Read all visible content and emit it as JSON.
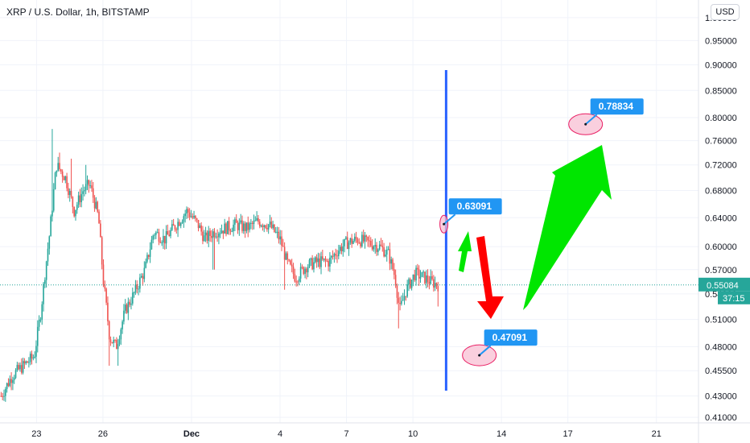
{
  "header": {
    "title": "XRP / U.S. Dollar, 1h, BITSTAMP",
    "currency_button": "USD"
  },
  "colors": {
    "up": "#26a69a",
    "down": "#ef5350",
    "vline": "#2962ff",
    "price_tag": "#26a69a",
    "callout": "#2196f3",
    "arrow_green": "#00e600",
    "arrow_red": "#ff0000"
  },
  "chart_data": {
    "type": "candlestick",
    "title": "XRP / U.S. Dollar, 1h, BITSTAMP",
    "y_scale": "log",
    "ylim": [
      0.405,
      1.04
    ],
    "y_ticks": [
      "1.00000",
      "0.95000",
      "0.90000",
      "0.85000",
      "0.80000",
      "0.76000",
      "0.72000",
      "0.68000",
      "0.64000",
      "0.60000",
      "0.57000",
      "0.54000",
      "0.51000",
      "0.48000",
      "0.45500",
      "0.43000",
      "0.41000"
    ],
    "x_ticks": [
      {
        "label": "23",
        "day": 23
      },
      {
        "label": "26",
        "day": 26
      },
      {
        "label": "Dec",
        "day": 30
      },
      {
        "label": "4",
        "day": 34
      },
      {
        "label": "7",
        "day": 37
      },
      {
        "label": "10",
        "day": 40
      },
      {
        "label": "14",
        "day": 44
      },
      {
        "label": "17",
        "day": 47
      },
      {
        "label": "21",
        "day": 51
      }
    ],
    "xlim_days": [
      21.35,
      52.9
    ],
    "price_path": [
      [
        21.4,
        0.43
      ],
      [
        21.9,
        0.45
      ],
      [
        22.4,
        0.46
      ],
      [
        22.9,
        0.47
      ],
      [
        23.2,
        0.52
      ],
      [
        23.6,
        0.62
      ],
      [
        23.9,
        0.72
      ],
      [
        24.3,
        0.7
      ],
      [
        24.7,
        0.65
      ],
      [
        25.1,
        0.68
      ],
      [
        25.4,
        0.69
      ],
      [
        25.8,
        0.64
      ],
      [
        26.0,
        0.56
      ],
      [
        26.3,
        0.49
      ],
      [
        26.6,
        0.48
      ],
      [
        27.0,
        0.52
      ],
      [
        27.4,
        0.54
      ],
      [
        27.9,
        0.57
      ],
      [
        28.3,
        0.62
      ],
      [
        28.8,
        0.61
      ],
      [
        29.3,
        0.63
      ],
      [
        29.8,
        0.65
      ],
      [
        30.3,
        0.63
      ],
      [
        30.6,
        0.61
      ],
      [
        31.0,
        0.62
      ],
      [
        31.5,
        0.625
      ],
      [
        32.0,
        0.63
      ],
      [
        32.5,
        0.625
      ],
      [
        33.0,
        0.635
      ],
      [
        33.5,
        0.63
      ],
      [
        34.0,
        0.61
      ],
      [
        34.3,
        0.58
      ],
      [
        34.7,
        0.56
      ],
      [
        35.2,
        0.575
      ],
      [
        35.7,
        0.58
      ],
      [
        36.2,
        0.58
      ],
      [
        36.6,
        0.595
      ],
      [
        37.0,
        0.605
      ],
      [
        37.5,
        0.61
      ],
      [
        38.0,
        0.605
      ],
      [
        38.5,
        0.6
      ],
      [
        38.9,
        0.59
      ],
      [
        39.2,
        0.56
      ],
      [
        39.4,
        0.52
      ],
      [
        39.7,
        0.545
      ],
      [
        40.1,
        0.565
      ],
      [
        40.5,
        0.56
      ],
      [
        40.8,
        0.555
      ],
      [
        41.2,
        0.55
      ]
    ],
    "spikes": [
      [
        23.7,
        0.78
      ],
      [
        24.05,
        0.74
      ],
      [
        24.55,
        0.73
      ],
      [
        25.25,
        0.72
      ],
      [
        26.3,
        0.46
      ],
      [
        26.7,
        0.46
      ],
      [
        31.0,
        0.57
      ],
      [
        34.2,
        0.545
      ],
      [
        39.35,
        0.5
      ],
      [
        41.15,
        0.525
      ]
    ],
    "current_price": {
      "label": "0.55084",
      "countdown": "37:15",
      "value": 0.55084
    },
    "vertical_line_day": 41.5,
    "annotations": [
      {
        "label": "0.63091",
        "value": 0.63091,
        "day": 41.4
      },
      {
        "label": "0.47091",
        "value": 0.47091,
        "day": 43.0
      },
      {
        "label": "0.78834",
        "value": 0.78834,
        "day": 47.8
      }
    ]
  }
}
